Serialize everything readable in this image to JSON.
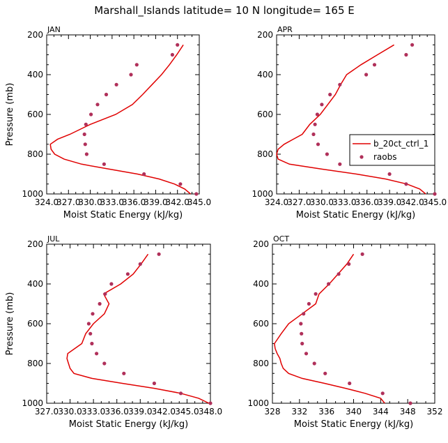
{
  "title": "Marshall_Islands  latitude= 10 N longitude= 165 E",
  "colors": {
    "model": "#e00000",
    "obs": "#b0305a",
    "axis": "#000000"
  },
  "chart_data": [
    {
      "type": "line",
      "panel": "JAN",
      "xlabel": "Moist Static Energy (kJ/kg)",
      "ylabel": "Pressure (mb)",
      "xlim": [
        324.0,
        345.0
      ],
      "ylim": [
        1000,
        200
      ],
      "xticks": [
        "324.0",
        "327.0",
        "330.0",
        "333.0",
        "336.0",
        "339.0",
        "342.0",
        "345.0"
      ],
      "yticks": [
        "200",
        "400",
        "600",
        "800",
        "1000"
      ],
      "legend": false,
      "series": [
        {
          "name": "b_20ct_ctrl_1",
          "kind": "line",
          "x": [
            343.8,
            343.0,
            341.6,
            339.5,
            336.5,
            332.6,
            328.8,
            326.4,
            325.1,
            324.6,
            324.5,
            325.5,
            327.2,
            330.0,
            333.5,
            335.8,
            337.2,
            338.5,
            339.8,
            340.9,
            341.9,
            342.8
          ],
          "y": [
            1000,
            975,
            950,
            925,
            900,
            875,
            850,
            825,
            800,
            775,
            750,
            725,
            700,
            650,
            600,
            550,
            500,
            450,
            400,
            350,
            300,
            250
          ]
        },
        {
          "name": "raobs",
          "kind": "points",
          "x": [
            344.6,
            342.4,
            337.4,
            331.9,
            329.5,
            329.3,
            329.2,
            329.4,
            330.1,
            331.0,
            332.2,
            333.6,
            335.6,
            336.4,
            341.3,
            342.0
          ],
          "y": [
            1000,
            950,
            900,
            850,
            800,
            750,
            700,
            650,
            600,
            550,
            500,
            450,
            400,
            350,
            300,
            250
          ]
        }
      ]
    },
    {
      "type": "line",
      "panel": "APR",
      "xlabel": "Moist Static Energy (kJ/kg)",
      "ylabel": "",
      "xlim": [
        324.0,
        345.0
      ],
      "ylim": [
        1000,
        200
      ],
      "xticks": [
        "324.0",
        "327.0",
        "330.0",
        "333.0",
        "336.0",
        "339.0",
        "342.0",
        "345.0"
      ],
      "yticks": [
        "200",
        "400",
        "600",
        "800",
        "1000"
      ],
      "legend": true,
      "legend_position": "right",
      "series": [
        {
          "name": "b_20ct_ctrl_1",
          "kind": "line",
          "x": [
            343.8,
            343.0,
            341.3,
            338.5,
            334.6,
            330.0,
            325.7,
            324.2,
            324.0,
            324.2,
            325.0,
            326.2,
            327.4,
            328.4,
            329.8,
            330.8,
            331.8,
            332.5,
            333.3,
            335.2,
            337.4,
            339.6
          ],
          "y": [
            1000,
            975,
            950,
            925,
            900,
            875,
            850,
            825,
            800,
            775,
            750,
            725,
            700,
            650,
            600,
            550,
            500,
            450,
            400,
            350,
            300,
            250
          ]
        },
        {
          "name": "raobs",
          "kind": "points",
          "x": [
            345.0,
            341.2,
            339.0,
            332.4,
            330.7,
            329.5,
            328.9,
            329.1,
            329.4,
            330.0,
            331.1,
            332.4,
            335.9,
            337.0,
            341.2,
            342.0
          ],
          "y": [
            1000,
            950,
            900,
            850,
            800,
            750,
            700,
            650,
            600,
            550,
            500,
            450,
            400,
            350,
            300,
            250
          ]
        }
      ]
    },
    {
      "type": "line",
      "panel": "JUL",
      "xlabel": "Moist Static Energy (kJ/kg)",
      "ylabel": "Pressure (mb)",
      "xlim": [
        327.0,
        348.0
      ],
      "ylim": [
        1000,
        200
      ],
      "xticks": [
        "327.0",
        "330.0",
        "333.0",
        "336.0",
        "339.0",
        "342.0",
        "345.0",
        "348.0"
      ],
      "yticks": [
        "200",
        "400",
        "600",
        "800",
        "1000"
      ],
      "legend": false,
      "series": [
        {
          "name": "b_20ct_ctrl_1",
          "kind": "line",
          "x": [
            347.8,
            346.5,
            344.2,
            340.8,
            336.7,
            332.8,
            330.5,
            330.0,
            329.8,
            329.6,
            329.7,
            330.6,
            331.5,
            332.0,
            333.0,
            334.4,
            335.0,
            334.3,
            336.5,
            338.1,
            339.1,
            340.0
          ],
          "y": [
            1000,
            975,
            950,
            925,
            900,
            875,
            850,
            825,
            800,
            775,
            750,
            725,
            700,
            650,
            600,
            550,
            500,
            450,
            400,
            350,
            300,
            250
          ]
        },
        {
          "name": "raobs",
          "kind": "points",
          "x": [
            348.0,
            344.2,
            340.8,
            336.9,
            334.4,
            333.4,
            332.8,
            332.6,
            332.4,
            332.9,
            333.8,
            334.5,
            335.3,
            337.4,
            339.0,
            341.4
          ],
          "y": [
            1000,
            950,
            900,
            850,
            800,
            750,
            700,
            650,
            600,
            550,
            500,
            450,
            400,
            350,
            300,
            250
          ]
        }
      ]
    },
    {
      "type": "line",
      "panel": "OCT",
      "xlabel": "Moist Static Energy (kJ/kg)",
      "ylabel": "",
      "xlim": [
        328,
        352
      ],
      "ylim": [
        1000,
        200
      ],
      "xticks": [
        "328",
        "332",
        "336",
        "340",
        "344",
        "348",
        "352"
      ],
      "yticks": [
        "200",
        "400",
        "600",
        "800",
        "1000"
      ],
      "legend": false,
      "series": [
        {
          "name": "b_20ct_ctrl_1",
          "kind": "line",
          "x": [
            344.6,
            344.0,
            341.7,
            338.8,
            335.7,
            332.4,
            330.4,
            329.6,
            329.3,
            329.1,
            328.7,
            328.4,
            328.3,
            329.3,
            330.4,
            332.4,
            334.4,
            334.9,
            336.4,
            337.7,
            339.0,
            340.0
          ],
          "y": [
            1000,
            975,
            950,
            925,
            900,
            875,
            850,
            825,
            800,
            775,
            750,
            725,
            700,
            650,
            600,
            550,
            500,
            450,
            400,
            350,
            300,
            250
          ]
        },
        {
          "name": "raobs",
          "kind": "points",
          "x": [
            348.4,
            344.3,
            339.4,
            335.8,
            334.2,
            333.0,
            332.4,
            332.3,
            332.2,
            332.6,
            333.4,
            334.4,
            336.3,
            337.8,
            339.3,
            341.3
          ],
          "y": [
            1000,
            950,
            900,
            850,
            800,
            750,
            700,
            650,
            600,
            550,
            500,
            450,
            400,
            350,
            300,
            250
          ]
        }
      ]
    }
  ]
}
